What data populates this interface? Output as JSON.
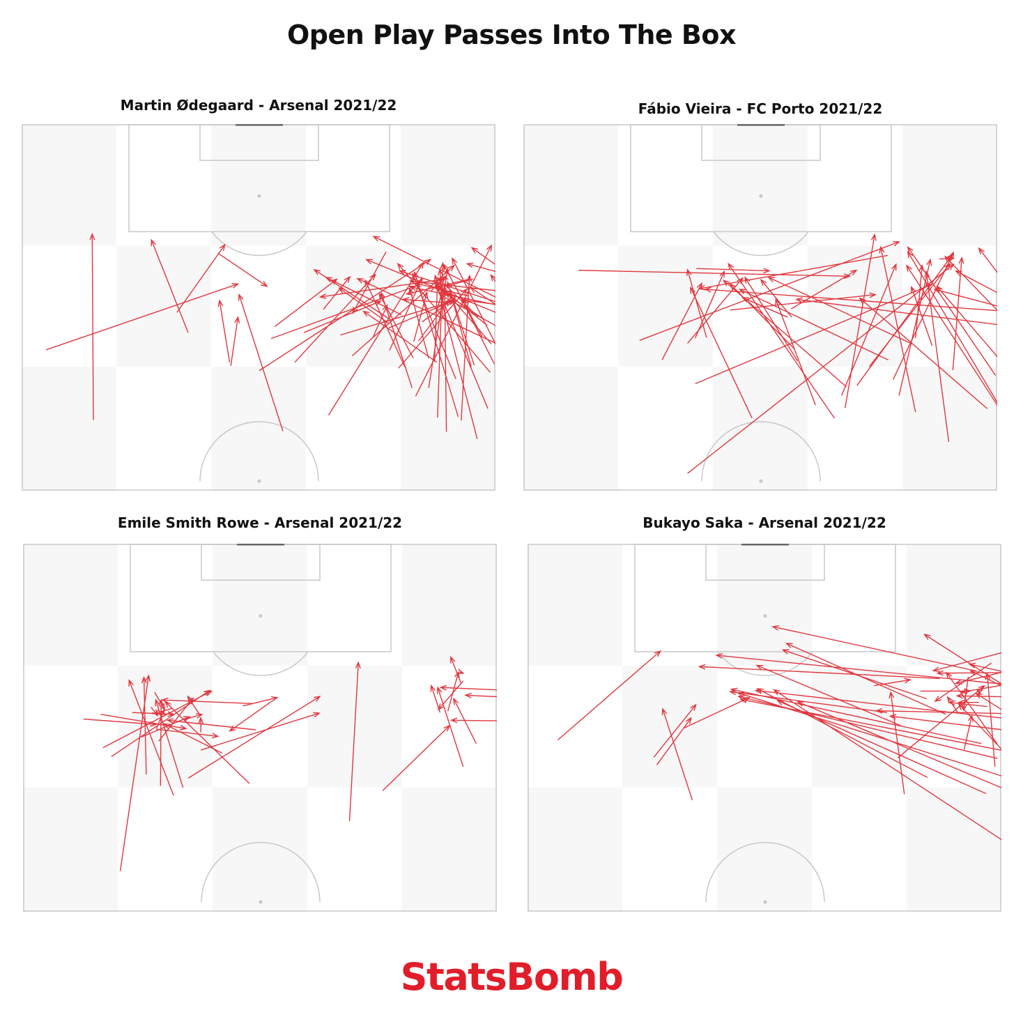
{
  "title": "Open Play Passes Into The Box",
  "brand": {
    "text": "StatsBomb",
    "color": "#e21d2a"
  },
  "colors": {
    "pass": "#e0363e",
    "pitch_line": "#c8c8c8",
    "pitch_dark_band": "#f7f7f7",
    "goal": "#666666"
  },
  "chart_data": [
    {
      "type": "scatter",
      "title": "Martin Ødegaard - Arsenal 2021/22",
      "x": "pitch width",
      "y": "pitch length",
      "passes": [
        [
          4,
          82.1,
          36.4,
          93.2
        ],
        [
          12,
          70.3,
          11.8,
          101.6
        ],
        [
          28,
          85,
          21.8,
          100.6
        ],
        [
          44,
          68.4,
          36.6,
          91.4
        ],
        [
          61.4,
          98.6,
          55.8,
          88.3
        ],
        [
          33,
          98.4,
          41.3,
          92.8
        ],
        [
          70,
          80,
          57.6,
          88.6
        ],
        [
          66,
          80.7,
          60.3,
          91.5
        ],
        [
          71.9,
          94.1,
          50.3,
          91
        ],
        [
          72,
          90,
          64.3,
          90.6
        ],
        [
          61.8,
          87.4,
          49.3,
          95.6
        ],
        [
          64,
          88,
          51.3,
          94.3
        ],
        [
          65.8,
          75.7,
          60.6,
          91.7
        ],
        [
          50.8,
          88.9,
          55.3,
          94.4
        ],
        [
          46,
          80,
          59.6,
          94.8
        ],
        [
          42,
          84,
          66.3,
          92.8
        ],
        [
          78,
          87.2,
          69.8,
          92.7
        ],
        [
          84.1,
          86.7,
          58.1,
          97.3
        ],
        [
          61.8,
          86.6,
          53.5,
          92.5
        ],
        [
          35,
          80,
          33.3,
          90.4
        ],
        [
          81.9,
          82.3,
          56.6,
          94.1
        ],
        [
          51.7,
          71.1,
          67.7,
          96.8
        ],
        [
          75.2,
          91.2,
          66.4,
          93.3
        ],
        [
          79,
          78.3,
          63.4,
          96.6
        ],
        [
          71.6,
          68.3,
          71.3,
          92.8
        ],
        [
          59.2,
          84.2,
          61.6,
          89.6
        ],
        [
          42.6,
          86,
          53.1,
          94
        ],
        [
          66.4,
          74.3,
          79.2,
          99.7
        ],
        [
          47.5,
          85,
          60.5,
          90.3
        ],
        [
          68.6,
          80.7,
          65.4,
          92.4
        ],
        [
          76.8,
          67.1,
          69.7,
          94.6
        ],
        [
          64.6,
          79.2,
          57.9,
          93.8
        ],
        [
          26.1,
          88.4,
          34.2,
          99.8
        ],
        [
          55.7,
          81.1,
          72.9,
          96.3
        ],
        [
          90,
          87,
          63.7,
          95.4
        ],
        [
          35.2,
          79.4,
          36.4,
          87.6
        ],
        [
          40,
          78.6,
          68.9,
          97.3
        ],
        [
          73.6,
          70.8,
          66.2,
          95.2
        ],
        [
          76.1,
          94,
          70.2,
          92.5
        ],
        [
          74.1,
          70.2,
          75.5,
          94.6
        ],
        [
          68.6,
          75.7,
          71.8,
          95.7
        ],
        [
          86.7,
          82.4,
          70.5,
          91.4
        ],
        [
          67.5,
          86.8,
          73.1,
          90.9
        ],
        [
          61.9,
          85.8,
          72.6,
          90.3
        ],
        [
          53.7,
          84.6,
          73.1,
          90.4
        ],
        [
          75.4,
          94,
          64.9,
          91.5
        ],
        [
          81.4,
          89.4,
          65.5,
          92.7
        ],
        [
          82.4,
          91.8,
          65.5,
          93.7
        ],
        [
          78.5,
          86.2,
          71.2,
          92.1
        ],
        [
          76.9,
          87.7,
          70.2,
          94.2
        ],
        [
          66.1,
          83.5,
          68.3,
          91.8
        ],
        [
          69.8,
          88,
          71,
          92.3
        ],
        [
          66.9,
          83.6,
          72,
          90.5
        ],
        [
          79.8,
          96.5,
          75.9,
          99.3
        ],
        [
          76.3,
          79.5,
          72.3,
          91.8
        ],
        [
          68.9,
          91.9,
          71.5,
          94.5
        ],
        [
          62,
          82,
          67.5,
          94.2
        ],
        [
          78.6,
          72.2,
          69.8,
          93.3
        ],
        [
          70.1,
          70.7,
          71,
          96.7
        ],
        [
          79.7,
          79.7,
          74.2,
          90.6
        ],
        [
          89.1,
          92.8,
          75.1,
          96.6
        ],
        [
          80.1,
          82.7,
          72.6,
          97.5
        ],
        [
          77.6,
          84.4,
          71.1,
          96.5
        ],
        [
          82.6,
          89.4,
          74.4,
          90.5
        ],
        [
          89.8,
          80.7,
          79.1,
          94.7
        ],
        [
          71,
          88,
          70.5,
          95.6
        ],
        [
          63.5,
          79,
          75,
          92.3
        ],
        [
          73.2,
          77.2,
          65.9,
          94.9
        ],
        [
          96.8,
          82.6,
          59.3,
          101.2
        ],
        [
          75.8,
          79.2,
          71.8,
          93.5
        ],
        [
          86.5,
          85.3,
          75.7,
          92.6
        ],
        [
          69.6,
          80.1,
          70.1,
          93.7
        ],
        [
          79.2,
          83.1,
          71.6,
          91.8
        ]
      ]
    },
    {
      "type": "scatter",
      "title": "Fábio Vieira - FC Porto 2021/22",
      "x": "pitch width",
      "y": "pitch length",
      "passes": [
        [
          9.2,
          95.5,
          55,
          94.5
        ],
        [
          19.5,
          83.7,
          63.3,
          100.3
        ],
        [
          38.5,
          70.6,
          28.1,
          92.6
        ],
        [
          30.8,
          84.2,
          27.6,
          95.6
        ],
        [
          29.1,
          95.8,
          41.4,
          95.4
        ],
        [
          27.6,
          83.2,
          36.9,
          94.2
        ],
        [
          28.9,
          84.1,
          33.8,
          95.3
        ],
        [
          34.8,
          88.8,
          59.3,
          91.4
        ],
        [
          45.6,
          82.3,
          34.8,
          93.2
        ],
        [
          52.4,
          70.6,
          34.5,
          96.6
        ],
        [
          23.3,
          80.4,
          30,
          93.3
        ],
        [
          61.4,
          98,
          29.6,
          92.4
        ],
        [
          54.2,
          72.3,
          59.2,
          101.5
        ],
        [
          45.2,
          87.6,
          40,
          93.9
        ],
        [
          28.9,
          76.4,
          68.8,
          93.1
        ],
        [
          44.5,
          87.6,
          36.9,
          90.9
        ],
        [
          45.1,
          89,
          56.1,
          95.5
        ],
        [
          79.6,
          77.8,
          64.8,
          99.4
        ],
        [
          61.5,
          80.4,
          36.4,
          92.3
        ],
        [
          68.9,
          82.8,
          65.4,
          92.7
        ],
        [
          49.2,
          72.8,
          42.5,
          90.6
        ],
        [
          54.4,
          75.9,
          33.7,
          93.8
        ],
        [
          78.2,
          72.2,
          56.7,
          90.8
        ],
        [
          65.5,
          83.1,
          41.3,
          94.3
        ],
        [
          46.2,
          80.2,
          37.3,
          94.3
        ],
        [
          87.6,
          85.4,
          46,
          90.6
        ],
        [
          97.6,
          87.4,
          30.6,
          92.3
        ],
        [
          70.1,
          97.4,
          72.5,
          97.5
        ],
        [
          53.6,
          74.4,
          62.8,
          96.5
        ],
        [
          93.8,
          85.8,
          69.3,
          92.3
        ],
        [
          80.4,
          72.4,
          64.8,
          98.6
        ],
        [
          71.7,
          66.6,
          67.9,
          95.3
        ],
        [
          66.1,
          71.6,
          60.2,
          99.4
        ],
        [
          72.4,
          78.7,
          73.9,
          97.6
        ],
        [
          62.3,
          77.1,
          72.5,
          98.5
        ],
        [
          83.8,
          66.8,
          64.6,
          96.3
        ],
        [
          56.2,
          76.1,
          72.3,
          98.1
        ],
        [
          58.3,
          79.3,
          71.9,
          96.6
        ],
        [
          93.1,
          75.2,
          71.1,
          97.8
        ],
        [
          100.8,
          80.8,
          72.9,
          95.4
        ],
        [
          66.1,
          84.1,
          67.2,
          96.3
        ],
        [
          83.2,
          90.8,
          76.8,
          99.2
        ],
        [
          63.3,
          74.4,
          68.6,
          97.3
        ],
        [
          27.6,
          61.3,
          72.5,
          96.5
        ],
        [
          90.8,
          68.3,
          69.7,
          92.8
        ]
      ]
    },
    {
      "type": "scatter",
      "title": "Emile Smith Rowe - Arsenal 2021/22",
      "x": "pitch width",
      "y": "pitch length",
      "passes": [
        [
          13.4,
          85.9,
          31.7,
          95.4
        ],
        [
          16.3,
          65.2,
          21.1,
          98
        ],
        [
          26.9,
          79.2,
          22.3,
          93.9
        ],
        [
          18.3,
          91.8,
          25.3,
          91.5
        ],
        [
          19.9,
          87.7,
          28,
          91.1
        ],
        [
          20.7,
          81.4,
          20.3,
          97.7
        ],
        [
          25.3,
          77.9,
          17.8,
          97.2
        ],
        [
          33.5,
          85,
          23.7,
          89.9
        ],
        [
          38.1,
          79.9,
          23.9,
          93.6
        ],
        [
          22.4,
          89,
          32.8,
          87.8
        ],
        [
          10.1,
          90.7,
          22.3,
          89.8
        ],
        [
          14.8,
          84.4,
          31.4,
          95.5
        ],
        [
          27.1,
          90.6,
          30.1,
          91.5
        ],
        [
          38.6,
          93.3,
          23.4,
          93.9
        ],
        [
          41.9,
          93.7,
          34.8,
          88.7
        ],
        [
          23.1,
          79.5,
          23.2,
          93.9
        ],
        [
          25.1,
          92.5,
          22,
          91.6
        ],
        [
          29.8,
          91.3,
          27.7,
          94.5
        ],
        [
          21.5,
          92.7,
          22.6,
          91.3
        ],
        [
          22.4,
          89.1,
          23.7,
          92.2
        ],
        [
          39.2,
          88.9,
          24.3,
          90.5
        ],
        [
          22.8,
          87,
          28.6,
          94.2
        ],
        [
          27.8,
          80.8,
          50,
          94.5
        ],
        [
          29.9,
          88.5,
          29.9,
          90.9
        ],
        [
          22.1,
          95.2,
          23.8,
          92.3
        ],
        [
          29.9,
          85.5,
          49.9,
          91.7
        ],
        [
          37,
          92.9,
          42.8,
          94.3
        ],
        [
          13,
          91.5,
          27.4,
          89.1
        ],
        [
          55,
          73.6,
          56.5,
          100.2
        ],
        [
          73.8,
          96.8,
          72.1,
          101.1
        ],
        [
          73.6,
          98.6,
          74.2,
          98.4
        ],
        [
          70.3,
          91.8,
          68.8,
          96.3
        ],
        [
          71.6,
          92,
          73.4,
          98.6
        ],
        [
          74.2,
          82.7,
          69.9,
          96
        ],
        [
          76.4,
          86.6,
          72.6,
          94.1
        ],
        [
          60.6,
          78.7,
          71.9,
          89.6
        ],
        [
          80,
          95.6,
          70.4,
          96
        ],
        [
          74.2,
          97.1,
          70,
          92.3
        ],
        [
          87.5,
          94.1,
          74.6,
          94.7
        ],
        [
          88.6,
          90.3,
          72.2,
          90.5
        ]
      ]
    },
    {
      "type": "scatter",
      "title": "Bukayo Saka - Arsenal 2021/22",
      "x": "pitch width",
      "y": "pitch length",
      "passes": [
        [
          5,
          87.2,
          22.3,
          102.1
        ],
        [
          21.2,
          84.3,
          28.3,
          93.1
        ],
        [
          27.7,
          77.1,
          22.7,
          92.4
        ],
        [
          21.7,
          83,
          27.5,
          90.9
        ],
        [
          26.3,
          89.2,
          37.3,
          94.3
        ],
        [
          60.6,
          91.8,
          34.1,
          95.3
        ],
        [
          62.9,
          89.6,
          38.6,
          99.7
        ],
        [
          67.3,
          94.1,
          43,
          102.3
        ],
        [
          70.5,
          91.5,
          43.6,
          103.4
        ],
        [
          67.4,
          80.9,
          38.7,
          95.8
        ],
        [
          79.2,
          84.1,
          35.5,
          94.5
        ],
        [
          84.6,
          79.7,
          35.4,
          95.1
        ],
        [
          85.9,
          84.3,
          35.9,
          94
        ],
        [
          91.4,
          89.6,
          38.4,
          95.5
        ],
        [
          77.3,
          78.2,
          42.1,
          93.8
        ],
        [
          76.5,
          86.6,
          34.3,
          95.7
        ],
        [
          83.9,
          77.5,
          45.5,
          93.6
        ],
        [
          93.3,
          61.7,
          41.5,
          95.6
        ],
        [
          81.9,
          91.6,
          58.8,
          92.1
        ],
        [
          85.9,
          88.2,
          61.1,
          91.2
        ],
        [
          87.8,
          103.9,
          68.4,
          98.8
        ],
        [
          92.3,
          98.6,
          69.1,
          98.4
        ],
        [
          69.5,
          97.5,
          28.9,
          99.5
        ],
        [
          83.9,
          96.2,
          31.8,
          101.4
        ],
        [
          75.5,
          98.8,
          41.3,
          106.2
        ],
        [
          89.5,
          100.8,
          72.2,
          96.7
        ],
        [
          82.3,
          95.1,
          74.7,
          98.8
        ],
        [
          76.1,
          93.5,
          72.7,
          93.5
        ],
        [
          66.2,
          95.4,
          74.6,
          95.4
        ],
        [
          58.4,
          96.3,
          64.5,
          97.3
        ],
        [
          83.3,
          82.1,
          72.7,
          93.2
        ],
        [
          78.2,
          100.1,
          68.7,
          93.7
        ],
        [
          63.5,
          78.1,
          61.2,
          95.2
        ],
        [
          77.5,
          92.8,
          71.1,
          93.5
        ],
        [
          62.4,
          84.2,
          77,
          96.3
        ],
        [
          91.6,
          94.2,
          72.4,
          94.6
        ],
        [
          87.6,
          97.7,
          73.1,
          95.2
        ],
        [
          79.2,
          86.5,
          70.6,
          98.5
        ],
        [
          76.1,
          95.8,
          76.2,
          94.8
        ],
        [
          78.8,
          82.7,
          77.5,
          98.3
        ],
        [
          72.5,
          91.8,
          70.8,
          94.4
        ],
        [
          74.3,
          97.8,
          73.5,
          92.2
        ],
        [
          92.5,
          84.4,
          75.6,
          95
        ],
        [
          73.6,
          85.6,
          74.9,
          91.3
        ],
        [
          82.1,
          95.2,
          66.9,
          104.9
        ],
        [
          80.9,
          98.5,
          74.5,
          99.9
        ]
      ]
    }
  ]
}
